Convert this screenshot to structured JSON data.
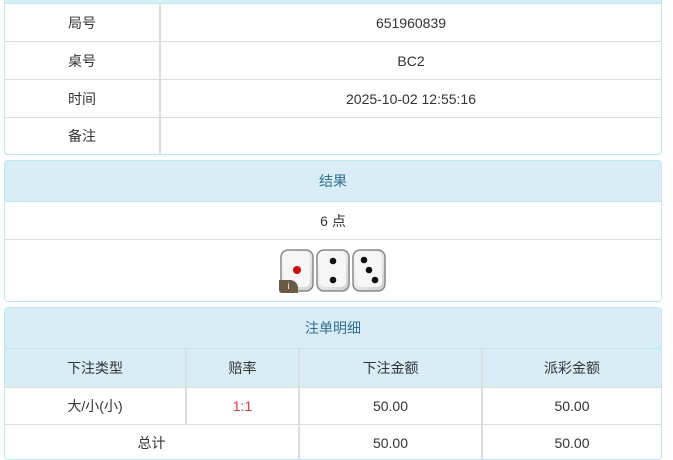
{
  "info": {
    "rows": [
      {
        "label": "局号",
        "value": "651960839"
      },
      {
        "label": "桌号",
        "value": "BC2"
      },
      {
        "label": "时间",
        "value": "2025-10-02 12:55:16"
      },
      {
        "label": "备注",
        "value": ""
      }
    ]
  },
  "result": {
    "title": "结果",
    "points": "6 点",
    "dice": [
      1,
      2,
      3
    ],
    "info_badge": "i"
  },
  "bets": {
    "title": "注单明细",
    "columns": [
      "下注类型",
      "赔率",
      "下注金额",
      "派彩金额"
    ],
    "rows": [
      {
        "type": "大/小(小)",
        "odds": "1:1",
        "amount": "50.00",
        "payout": "50.00"
      }
    ],
    "total": {
      "label": "总计",
      "amount": "50.00",
      "payout": "50.00"
    }
  },
  "colors": {
    "header_bg": "#d9edf7",
    "header_text": "#31708f",
    "odds": "#e4393c"
  }
}
